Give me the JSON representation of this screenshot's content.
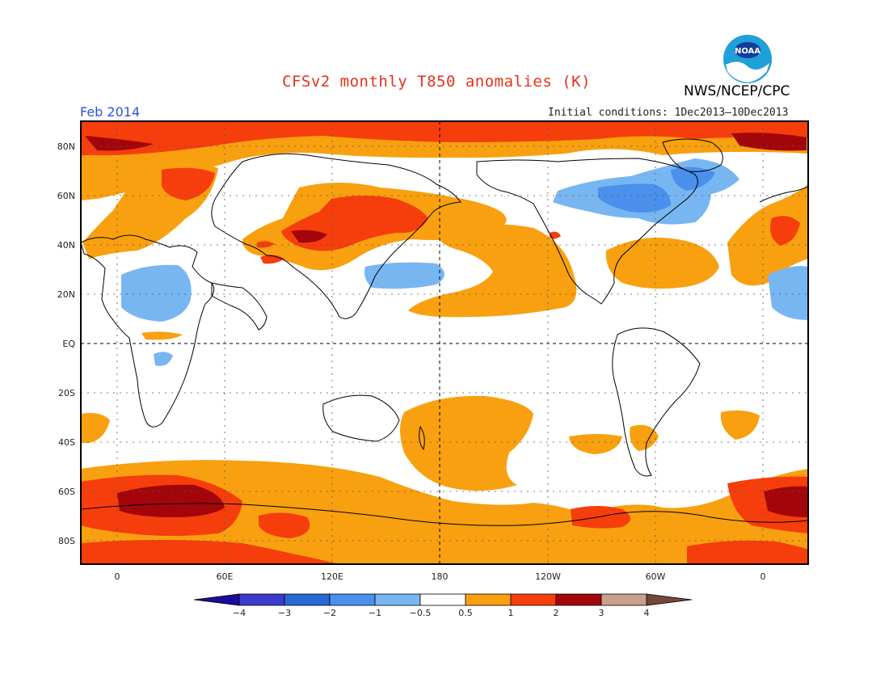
{
  "header": {
    "title": "CFSv2 monthly T850 anomalies (K)",
    "organization": "NWS/NCEP/CPC",
    "month": "Feb 2014",
    "initial_conditions": "Initial conditions: 1Dec2013–10Dec2013"
  },
  "logo": {
    "text": "NOAA",
    "icon": "noaa-logo-icon"
  },
  "map": {
    "lat_labels": [
      "80N",
      "60N",
      "40N",
      "20N",
      "EQ",
      "20S",
      "40S",
      "60S",
      "80S"
    ],
    "lon_labels": [
      "0",
      "60E",
      "120E",
      "180",
      "120W",
      "60W",
      "0"
    ]
  },
  "colorbar": {
    "ticks": [
      "−4",
      "−3",
      "−2",
      "−1",
      "−0.5",
      "0.5",
      "1",
      "2",
      "3",
      "4"
    ],
    "colors": {
      "lt_-4": "#1a0c9c",
      "-4_-3": "#3b3ccc",
      "-3_-2": "#2868d6",
      "-2_-1": "#4a90ec",
      "-1_-0.5": "#78b6f2",
      "-0.5_0.5": "#ffffff",
      "0.5_1": "#f8a00f",
      "1_2": "#f53e0c",
      "2_3": "#a3060a",
      "3_4": "#c8a08c",
      "gt_4": "#744838"
    }
  }
}
